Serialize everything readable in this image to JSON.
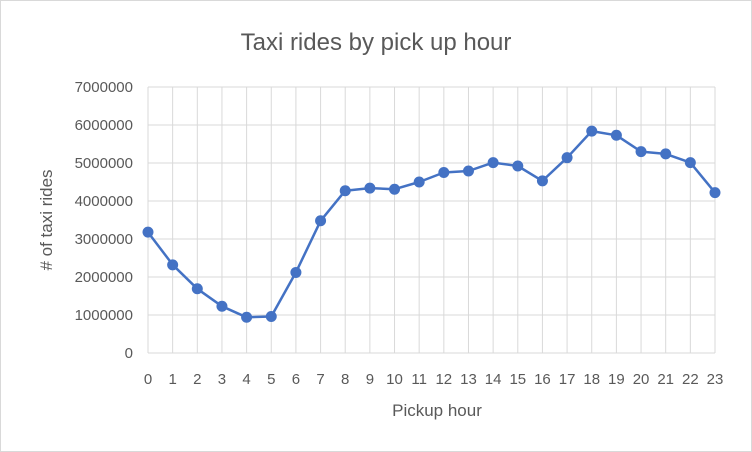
{
  "chart_data": {
    "type": "line",
    "title": "Taxi rides by pick up hour",
    "xlabel": "Pickup hour",
    "ylabel": "# of taxi rides",
    "x": [
      0,
      1,
      2,
      3,
      4,
      5,
      6,
      7,
      8,
      9,
      10,
      11,
      12,
      13,
      14,
      15,
      16,
      17,
      18,
      19,
      20,
      21,
      22,
      23
    ],
    "x_tick_labels": [
      "0",
      "1",
      "2",
      "3",
      "4",
      "5",
      "6",
      "7",
      "8",
      "9",
      "10",
      "11",
      "12",
      "13",
      "14",
      "15",
      "16",
      "17",
      "18",
      "19",
      "20",
      "21",
      "22",
      "23"
    ],
    "y_tick_labels": [
      "0",
      "1000000",
      "2000000",
      "3000000",
      "4000000",
      "5000000",
      "6000000",
      "7000000"
    ],
    "y_ticks": [
      0,
      1000000,
      2000000,
      3000000,
      4000000,
      5000000,
      6000000,
      7000000
    ],
    "ylim": [
      0,
      7000000
    ],
    "grid": true,
    "legend": "none",
    "series": [
      {
        "values": [
          3180000,
          2320000,
          1690000,
          1230000,
          940000,
          960000,
          2120000,
          3480000,
          4270000,
          4340000,
          4310000,
          4500000,
          4750000,
          4790000,
          5010000,
          4920000,
          4530000,
          5140000,
          5840000,
          5730000,
          5300000,
          5240000,
          5010000,
          4220000
        ],
        "color": "#4472c4"
      }
    ]
  }
}
